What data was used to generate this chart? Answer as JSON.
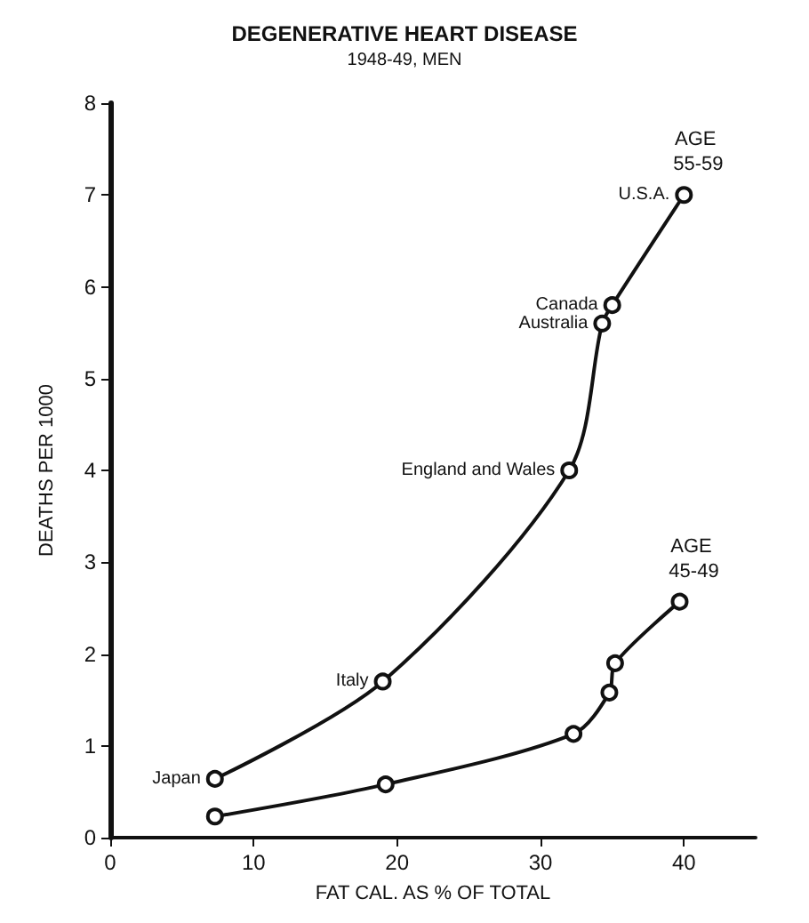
{
  "chart_data": {
    "type": "line",
    "title": "DEGENERATIVE HEART DISEASE",
    "subtitle": "1948-49, MEN",
    "xlabel": "FAT CAL. AS % OF TOTAL",
    "ylabel": "DEATHS PER 1000",
    "xlim": [
      0,
      45
    ],
    "xticks": [
      0,
      10,
      20,
      30,
      40
    ],
    "ylim": [
      0,
      8
    ],
    "yticks": [
      0,
      1,
      2,
      3,
      4,
      5,
      6,
      7,
      8
    ],
    "grid": false,
    "legend": false,
    "marker": "circle",
    "line_style": "solid",
    "series": [
      {
        "name": "AGE 55-59",
        "color": "#111111",
        "x": [
          7.3,
          19,
          32,
          34.3,
          35,
          40
        ],
        "values": [
          0.64,
          1.7,
          4.0,
          5.6,
          5.8,
          7.0
        ]
      },
      {
        "name": "AGE 45-49",
        "color": "#111111",
        "x": [
          7.3,
          19.2,
          32.3,
          34.8,
          35.2,
          39.7
        ],
        "values": [
          0.23,
          0.58,
          1.13,
          1.58,
          1.9,
          2.57
        ]
      }
    ],
    "annotations": [
      {
        "text": "Japan",
        "x": 7.3,
        "y": 0.64
      },
      {
        "text": "Italy",
        "x": 19,
        "y": 1.7
      },
      {
        "text": "England and Wales",
        "x": 32,
        "y": 4.0
      },
      {
        "text": "Australia",
        "x": 34.3,
        "y": 5.6
      },
      {
        "text": "Canada",
        "x": 35,
        "y": 5.8
      },
      {
        "text": "U.S.A.",
        "x": 40,
        "y": 7.0
      }
    ]
  }
}
